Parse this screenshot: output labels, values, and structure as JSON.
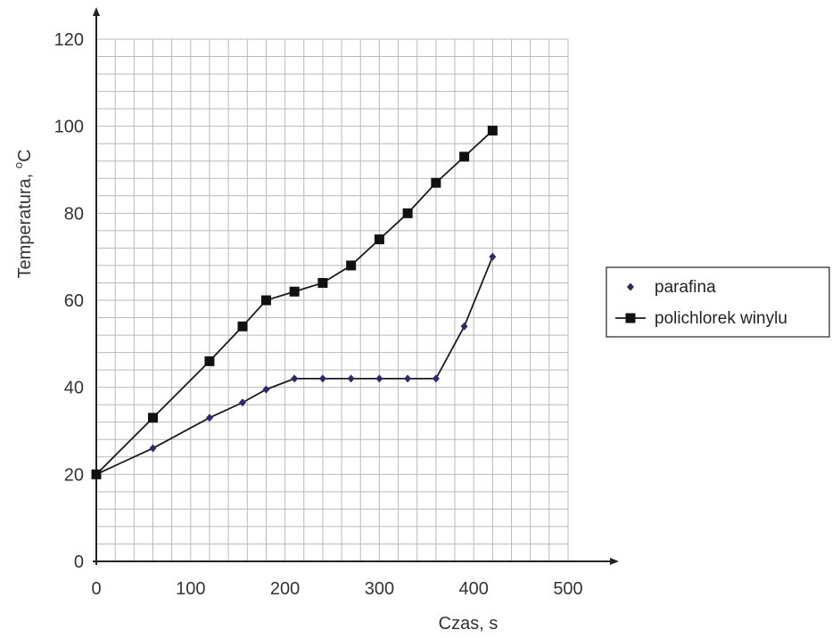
{
  "chart_data": {
    "type": "line",
    "title": "",
    "xlabel": "Czas, s",
    "ylabel_main": "Temperatura, ",
    "ylabel_sup": "o",
    "ylabel_unit": "C",
    "xlim": [
      0,
      500
    ],
    "ylim": [
      0,
      120
    ],
    "x_ticks": [
      0,
      100,
      200,
      300,
      400,
      500
    ],
    "y_ticks": [
      0,
      20,
      40,
      60,
      80,
      100,
      120
    ],
    "grid": true,
    "legend_position": "right",
    "series": [
      {
        "name": "parafina",
        "marker": "diamond",
        "color": "#2a2a6e",
        "x": [
          0,
          60,
          120,
          155,
          180,
          210,
          240,
          270,
          300,
          330,
          360,
          390,
          420
        ],
        "y": [
          20,
          26,
          33,
          36.5,
          39.5,
          42,
          42,
          42,
          42,
          42,
          42,
          54,
          70
        ]
      },
      {
        "name": "polichlorek winylu",
        "marker": "square",
        "color": "#111111",
        "x": [
          0,
          60,
          120,
          155,
          180,
          210,
          240,
          270,
          300,
          330,
          360,
          390,
          420
        ],
        "y": [
          20,
          33,
          46,
          54,
          60,
          62,
          64,
          68,
          74,
          80,
          87,
          93,
          99
        ]
      }
    ]
  }
}
